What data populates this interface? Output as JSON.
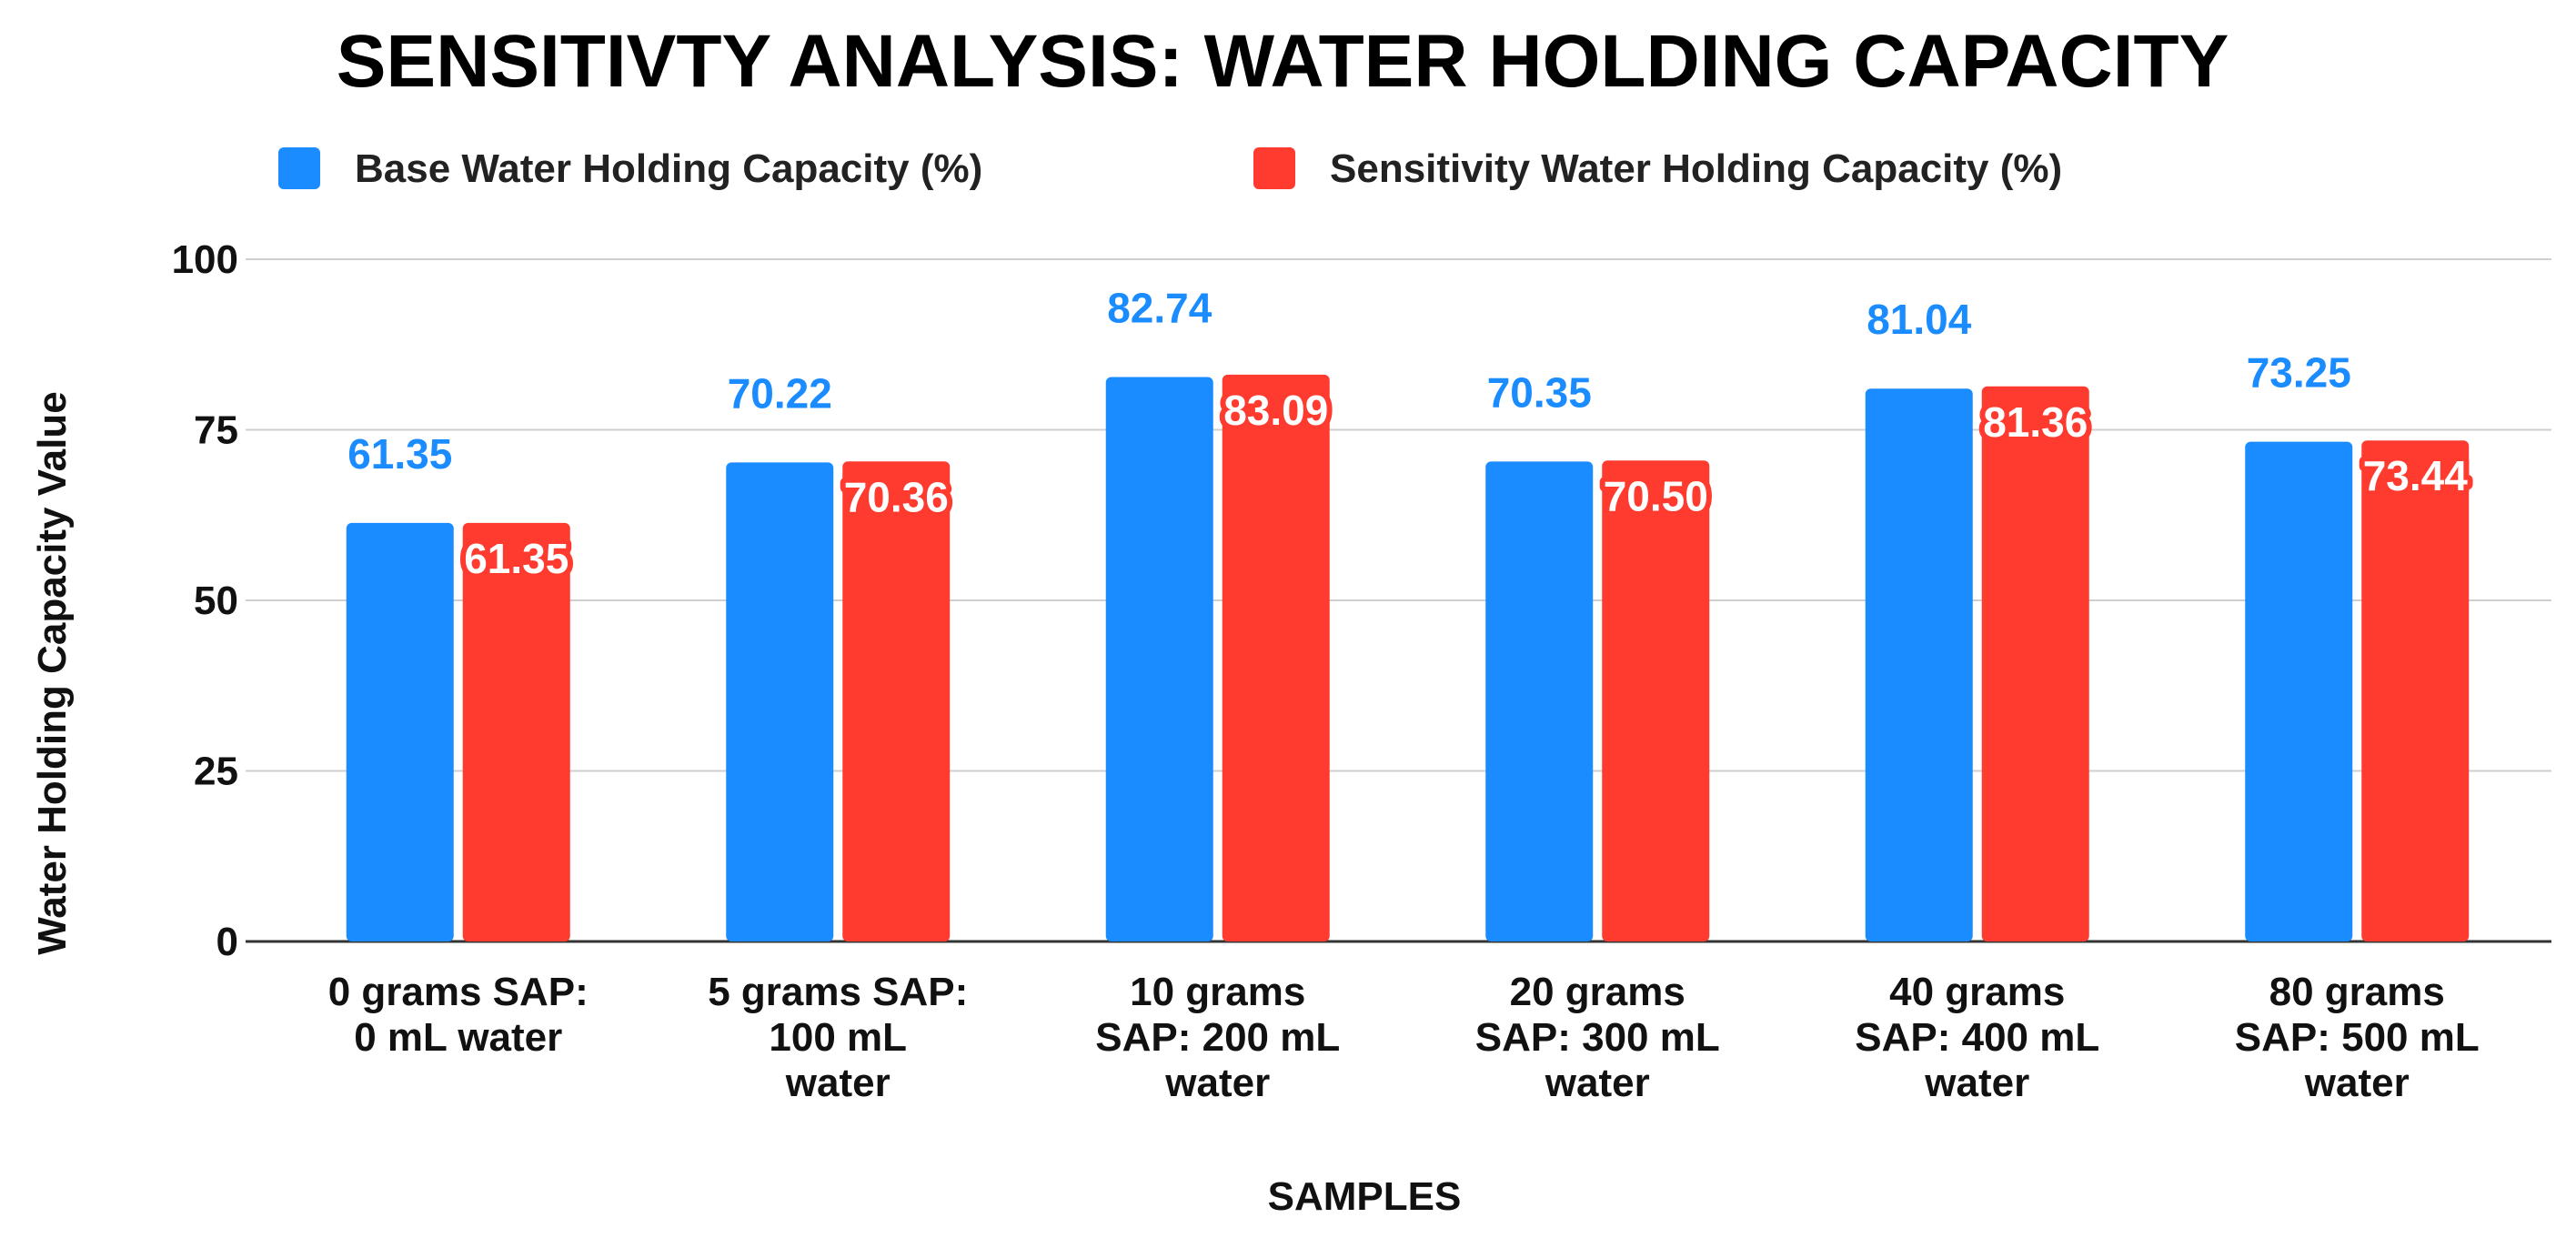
{
  "chart_data": {
    "type": "bar",
    "title": "SENSITIVTY ANALYSIS: WATER HOLDING CAPACITY",
    "xlabel": "SAMPLES",
    "ylabel": "Water Holding Capacity Value",
    "ylim": [
      0,
      100
    ],
    "yticks": [
      "0",
      "25",
      "50",
      "75",
      "100"
    ],
    "grid": true,
    "legend_position": "top",
    "categories": [
      [
        "0 grams SAP:",
        "0 mL water"
      ],
      [
        "5 grams SAP:",
        "100 mL",
        "water"
      ],
      [
        "10 grams",
        "SAP: 200 mL",
        "water"
      ],
      [
        "20 grams",
        "SAP: 300 mL",
        "water"
      ],
      [
        "40 grams",
        "SAP: 400 mL",
        "water"
      ],
      [
        "80 grams",
        "SAP: 500 mL",
        "water"
      ]
    ],
    "series": [
      {
        "name": "Base Water Holding Capacity (%)",
        "color": "#1a8cff",
        "values": [
          61.35,
          70.22,
          82.74,
          70.35,
          81.04,
          73.25
        ],
        "labels": [
          "61.35",
          "70.22",
          "82.74",
          "70.35",
          "81.04",
          "73.25"
        ]
      },
      {
        "name": "Sensitivity Water Holding Capacity (%)",
        "color": "#ff3b30",
        "values": [
          61.35,
          70.36,
          83.09,
          70.5,
          81.36,
          73.44
        ],
        "labels": [
          "61.35",
          "70.36",
          "83.09",
          "70.50",
          "81.36",
          "73.44"
        ]
      }
    ]
  }
}
